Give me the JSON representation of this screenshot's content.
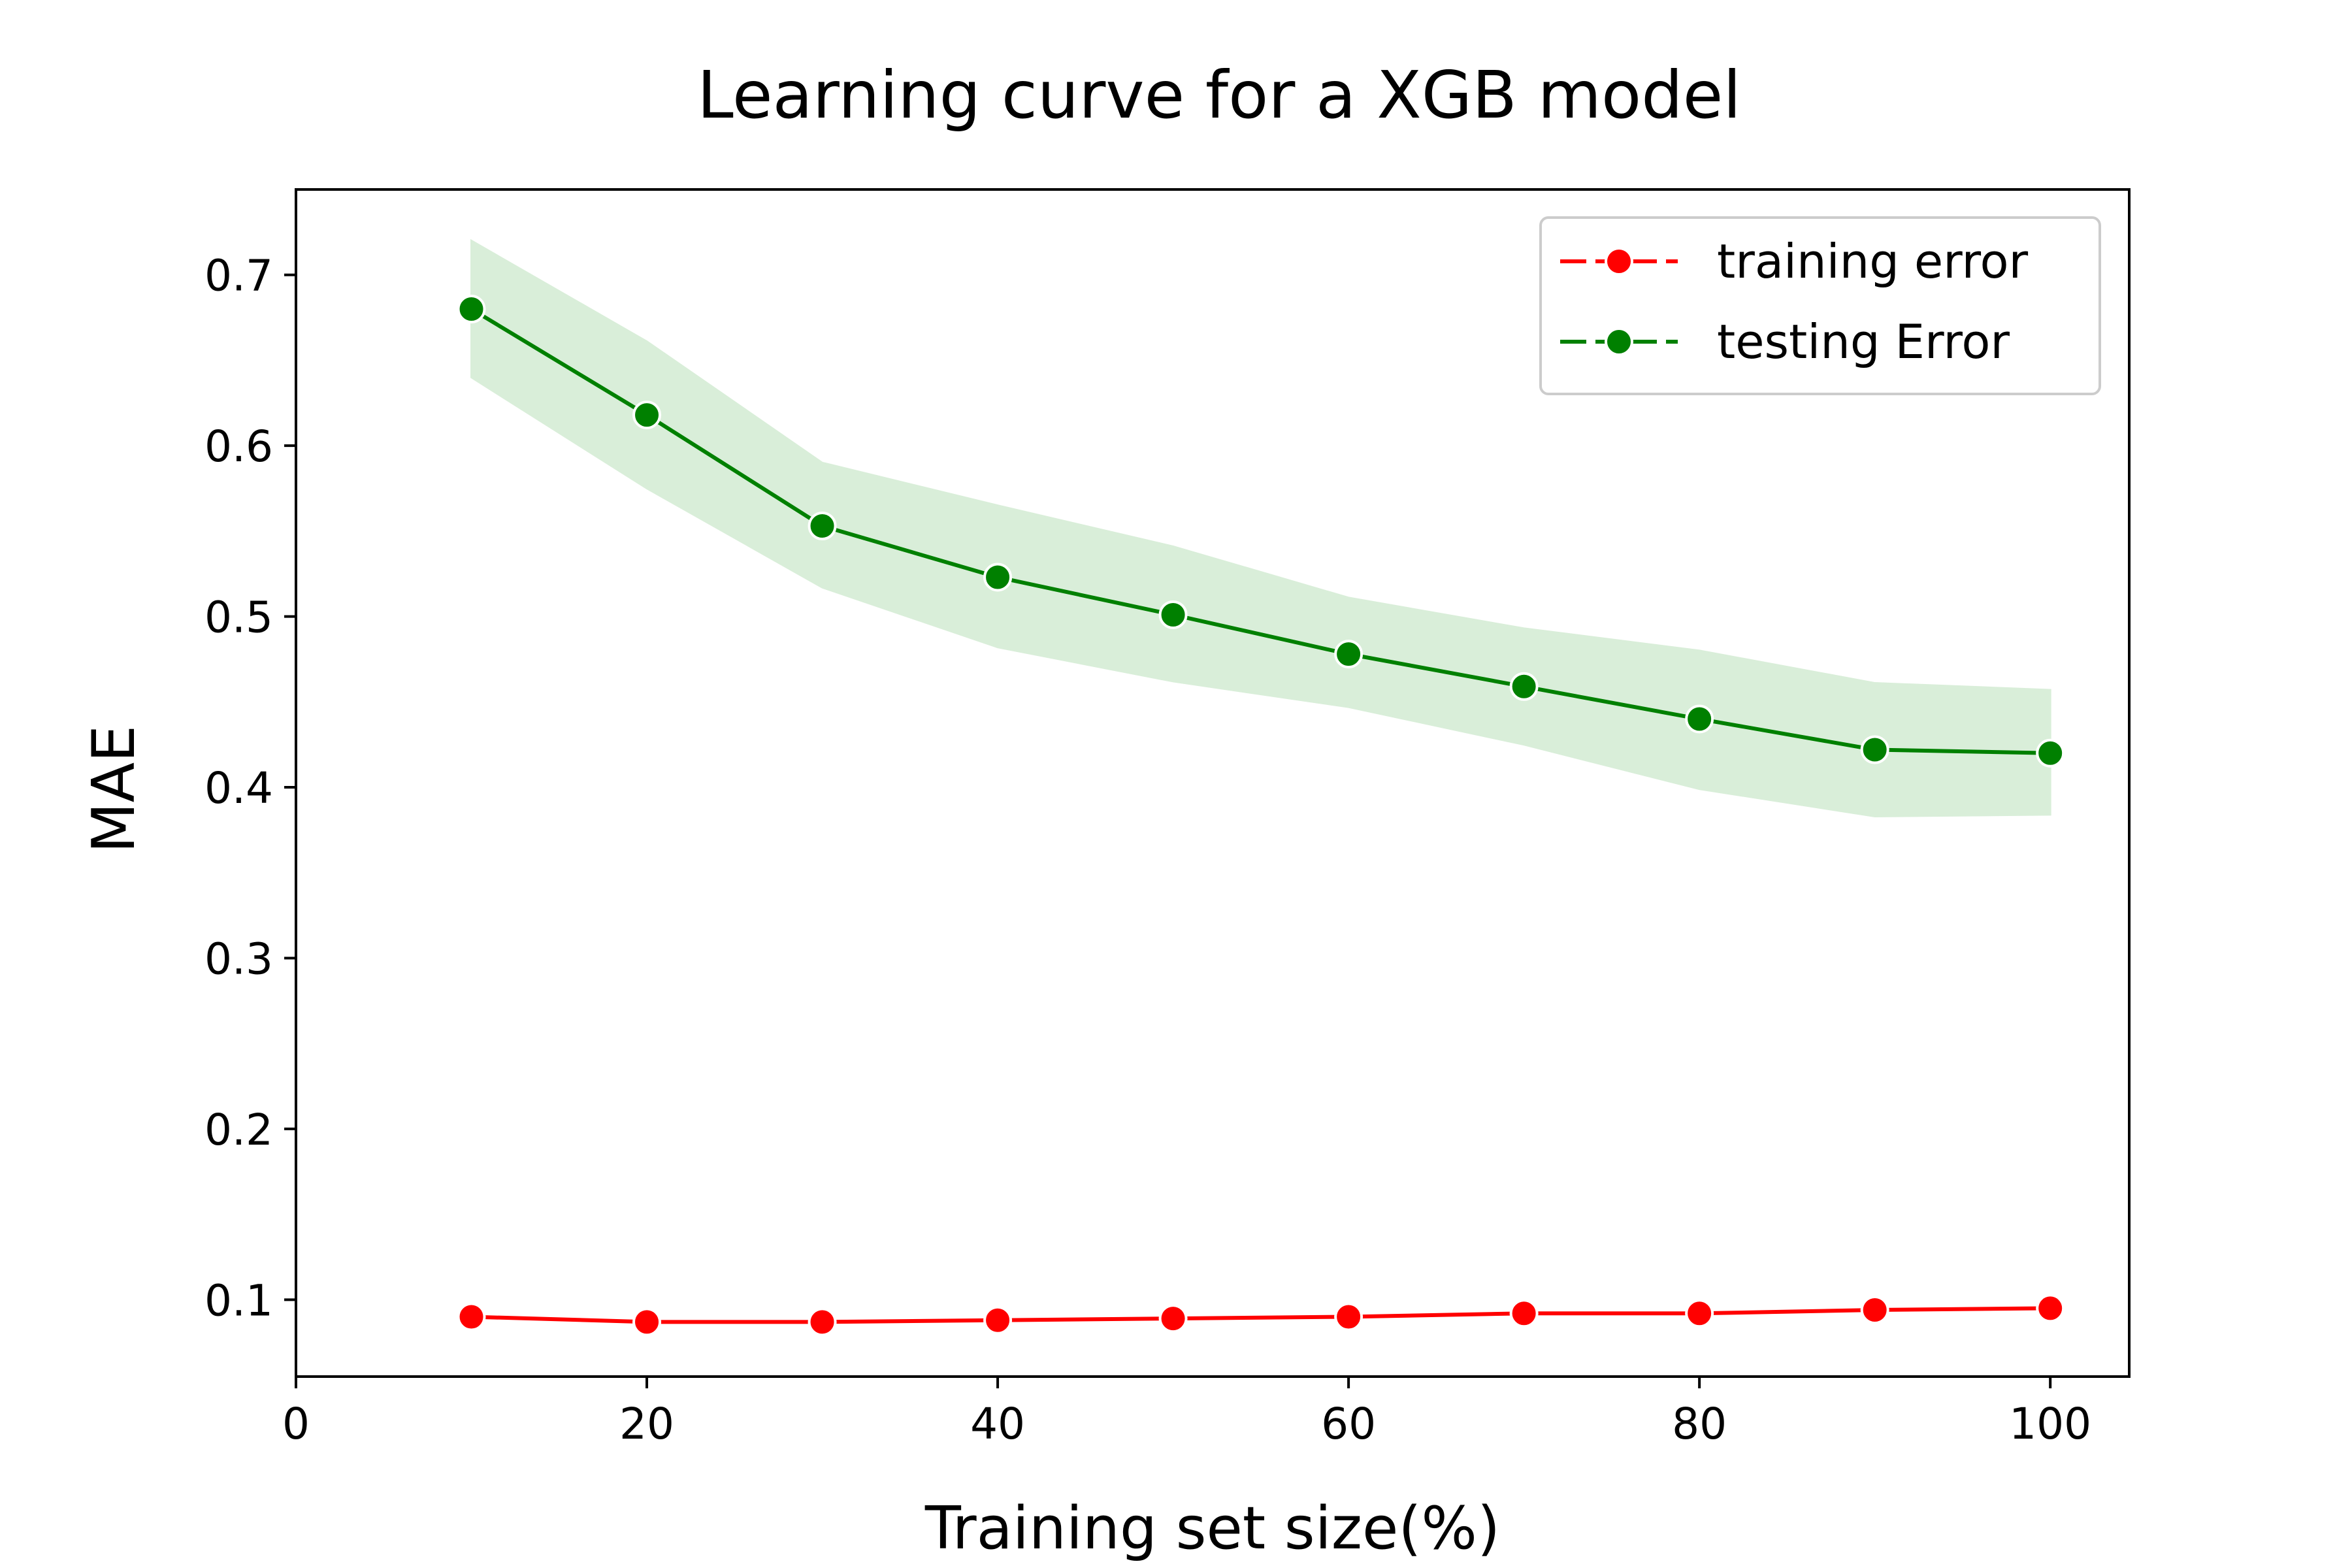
{
  "chart_data": {
    "type": "line",
    "title": "Learning curve for a XGB model",
    "xlabel": "Training set size(%)",
    "ylabel": "MAE",
    "xlim": [
      0,
      104.5
    ],
    "ylim": [
      0.055,
      0.75
    ],
    "xticks": [
      0,
      20,
      40,
      60,
      80,
      100
    ],
    "yticks": [
      0.1,
      0.2,
      0.3,
      0.4,
      0.5,
      0.6,
      0.7
    ],
    "grid": false,
    "legend_position": "top-right",
    "x": [
      10,
      20,
      30,
      40,
      50,
      60,
      70,
      80,
      90,
      100
    ],
    "series": [
      {
        "name": "training error",
        "color": "#ff0000",
        "marker": "circle",
        "values": [
          0.09,
          0.087,
          0.087,
          0.088,
          0.089,
          0.09,
          0.092,
          0.092,
          0.094,
          0.095
        ]
      },
      {
        "name": "testing Error",
        "color": "#008000",
        "marker": "circle",
        "values": [
          0.68,
          0.618,
          0.553,
          0.523,
          0.501,
          0.478,
          0.459,
          0.44,
          0.422,
          0.42
        ],
        "band_upper": [
          0.72,
          0.661,
          0.59,
          0.565,
          0.541,
          0.511,
          0.493,
          0.48,
          0.461,
          0.457
        ],
        "band_lower": [
          0.64,
          0.575,
          0.517,
          0.482,
          0.462,
          0.447,
          0.425,
          0.399,
          0.383,
          0.384
        ],
        "band_color": "#d9eed9"
      }
    ]
  }
}
